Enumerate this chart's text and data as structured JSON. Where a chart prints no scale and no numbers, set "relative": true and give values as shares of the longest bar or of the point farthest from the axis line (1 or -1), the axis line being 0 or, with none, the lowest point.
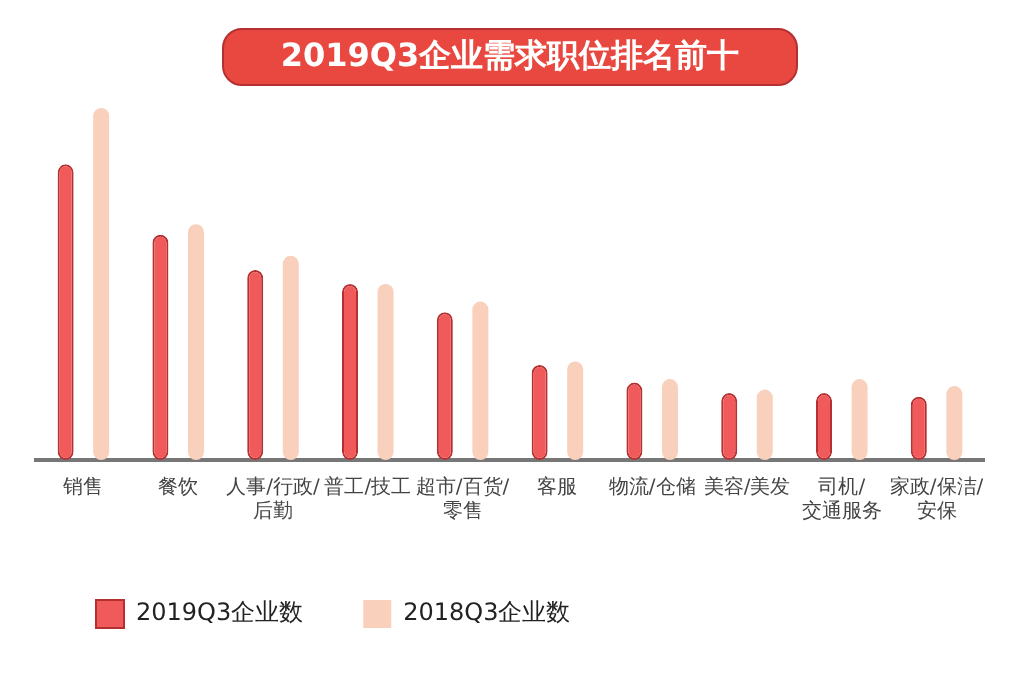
{
  "chart_data": {
    "type": "bar",
    "title": "2019Q3企业需求职位排名前十",
    "relative": true,
    "grid": false,
    "legend": "bottom",
    "categories": [
      "销售",
      "餐饮",
      "人事/行政/后勤",
      "普工/技工",
      "超市/百货/零售",
      "客服",
      "物流/仓储",
      "美容/美发",
      "司机/交通服务",
      "家政/保洁/安保"
    ],
    "series": [
      {
        "name": "2019Q3企业数",
        "color": "#f05a5a",
        "values": [
          0.84,
          0.64,
          0.54,
          0.5,
          0.42,
          0.27,
          0.22,
          0.19,
          0.19,
          0.18
        ]
      },
      {
        "name": "2018Q3企业数",
        "color": "#f9d0bc",
        "values": [
          1,
          0.67,
          0.58,
          0.5,
          0.45,
          0.28,
          0.23,
          0.2,
          0.23,
          0.21
        ]
      }
    ]
  }
}
